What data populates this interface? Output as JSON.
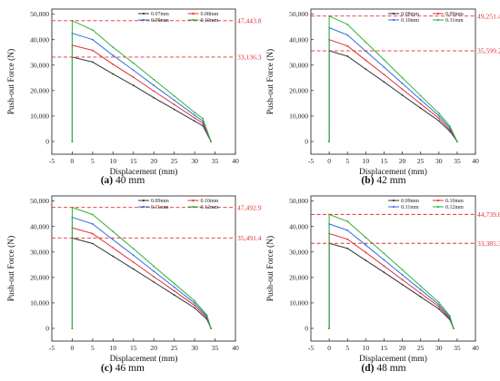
{
  "figure": {
    "charts": [
      {
        "caption_letter": "(a)",
        "caption_text": " 40 mm"
      },
      {
        "caption_letter": "(b)",
        "caption_text": " 42 mm"
      },
      {
        "caption_letter": "(c)",
        "caption_text": " 46 mm"
      },
      {
        "caption_letter": "(d)",
        "caption_text": " 48 mm"
      }
    ]
  },
  "colors": {
    "series": [
      "#333333",
      "#e03030",
      "#2f6fe0",
      "#2db33a"
    ],
    "reference_line": "#e03030",
    "reference_label": "#e03030",
    "axis": "#333333"
  },
  "chart_data": [
    {
      "type": "line",
      "xlabel": "Displacement (mm)",
      "ylabel": "Push-out Force (N)",
      "xlim": [
        -5,
        40
      ],
      "ylim": [
        -5000,
        52000
      ],
      "xticks": [
        "-5",
        "0",
        "5",
        "10",
        "15",
        "20",
        "25",
        "30",
        "35",
        "40"
      ],
      "yticks": [
        "0",
        "10,000",
        "20,000",
        "30,000",
        "40,000",
        "50,000"
      ],
      "legend": "top-right",
      "series": [
        {
          "name": "0.07mm",
          "points": [
            [
              0,
              0
            ],
            [
              0,
              33136
            ],
            [
              5,
              31200
            ],
            [
              10,
              26500
            ],
            [
              15,
              22000
            ],
            [
              20,
              17200
            ],
            [
              25,
              12600
            ],
            [
              30,
              8000
            ],
            [
              32,
              6200
            ],
            [
              34,
              0
            ]
          ]
        },
        {
          "name": "0.08mm",
          "points": [
            [
              0,
              0
            ],
            [
              0,
              37800
            ],
            [
              5,
              35800
            ],
            [
              10,
              30300
            ],
            [
              15,
              25200
            ],
            [
              20,
              19800
            ],
            [
              25,
              14500
            ],
            [
              30,
              9200
            ],
            [
              32,
              7200
            ],
            [
              34,
              0
            ]
          ]
        },
        {
          "name": "0.09mm",
          "points": [
            [
              0,
              0
            ],
            [
              0,
              42500
            ],
            [
              5,
              40000
            ],
            [
              10,
              33800
            ],
            [
              15,
              28000
            ],
            [
              20,
              22000
            ],
            [
              25,
              16200
            ],
            [
              30,
              10300
            ],
            [
              32,
              8000
            ],
            [
              34,
              0
            ]
          ]
        },
        {
          "name": "0.10mm",
          "points": [
            [
              0,
              0
            ],
            [
              0,
              47444
            ],
            [
              5,
              43800
            ],
            [
              10,
              37000
            ],
            [
              15,
              30800
            ],
            [
              20,
              24300
            ],
            [
              25,
              17900
            ],
            [
              30,
              11400
            ],
            [
              32,
              9000
            ],
            [
              34,
              0
            ]
          ]
        }
      ],
      "reference_lines": [
        {
          "y": 47443.8,
          "label": "47,443.8"
        },
        {
          "y": 33136.3,
          "label": "33,136.3"
        }
      ]
    },
    {
      "type": "line",
      "xlabel": "Displacement (mm)",
      "ylabel": "Push-out Force (N)",
      "xlim": [
        -5,
        40
      ],
      "ylim": [
        -5000,
        52000
      ],
      "xticks": [
        "-5",
        "0",
        "5",
        "10",
        "15",
        "20",
        "25",
        "30",
        "35",
        "40"
      ],
      "yticks": [
        "0",
        "10,000",
        "20,000",
        "30,000",
        "40,000",
        "50,000"
      ],
      "legend": "top-right",
      "series": [
        {
          "name": "0.08mm",
          "points": [
            [
              0,
              0
            ],
            [
              0,
              35599
            ],
            [
              5,
              33500
            ],
            [
              10,
              28400
            ],
            [
              15,
              23400
            ],
            [
              20,
              18200
            ],
            [
              25,
              13100
            ],
            [
              30,
              8100
            ],
            [
              33,
              4000
            ],
            [
              35,
              0
            ]
          ]
        },
        {
          "name": "0.09mm",
          "points": [
            [
              0,
              0
            ],
            [
              0,
              40000
            ],
            [
              5,
              37500
            ],
            [
              10,
              31900
            ],
            [
              15,
              26300
            ],
            [
              20,
              20500
            ],
            [
              25,
              14800
            ],
            [
              30,
              9100
            ],
            [
              33,
              4600
            ],
            [
              35,
              0
            ]
          ]
        },
        {
          "name": "0.10mm",
          "points": [
            [
              0,
              0
            ],
            [
              0,
              44700
            ],
            [
              5,
              41800
            ],
            [
              10,
              35500
            ],
            [
              15,
              29200
            ],
            [
              20,
              22800
            ],
            [
              25,
              16400
            ],
            [
              30,
              10100
            ],
            [
              33,
              5300
            ],
            [
              35,
              0
            ]
          ]
        },
        {
          "name": "0.11mm",
          "points": [
            [
              0,
              0
            ],
            [
              0,
              49251
            ],
            [
              5,
              46000
            ],
            [
              10,
              39000
            ],
            [
              15,
              32100
            ],
            [
              20,
              25000
            ],
            [
              25,
              18000
            ],
            [
              30,
              11100
            ],
            [
              33,
              6000
            ],
            [
              35,
              0
            ]
          ]
        }
      ],
      "reference_lines": [
        {
          "y": 49251.4,
          "label": "49,251.4"
        },
        {
          "y": 35599.2,
          "label": "35,599.2"
        }
      ]
    },
    {
      "type": "line",
      "xlabel": "Displacement (mm)",
      "ylabel": "Push-out Force (N)",
      "xlim": [
        -5,
        40
      ],
      "ylim": [
        -5000,
        52000
      ],
      "xticks": [
        "-5",
        "0",
        "5",
        "10",
        "15",
        "20",
        "25",
        "30",
        "35",
        "40"
      ],
      "yticks": [
        "0",
        "10,000",
        "20,000",
        "30,000",
        "40,000",
        "50,000"
      ],
      "legend": "top-right",
      "series": [
        {
          "name": "0.09mm",
          "points": [
            [
              0,
              0
            ],
            [
              0,
              35491
            ],
            [
              5,
              33300
            ],
            [
              10,
              28300
            ],
            [
              15,
              23300
            ],
            [
              20,
              18200
            ],
            [
              25,
              13100
            ],
            [
              30,
              8000
            ],
            [
              33,
              3600
            ],
            [
              34,
              0
            ]
          ]
        },
        {
          "name": "0.10mm",
          "points": [
            [
              0,
              0
            ],
            [
              0,
              39500
            ],
            [
              5,
              37200
            ],
            [
              10,
              31600
            ],
            [
              15,
              26000
            ],
            [
              20,
              20300
            ],
            [
              25,
              14700
            ],
            [
              30,
              9000
            ],
            [
              33,
              4200
            ],
            [
              34,
              0
            ]
          ]
        },
        {
          "name": "0.11mm",
          "points": [
            [
              0,
              0
            ],
            [
              0,
              43600
            ],
            [
              5,
              41000
            ],
            [
              10,
              34800
            ],
            [
              15,
              28700
            ],
            [
              20,
              22400
            ],
            [
              25,
              16200
            ],
            [
              30,
              9900
            ],
            [
              33,
              4700
            ],
            [
              34,
              0
            ]
          ]
        },
        {
          "name": "0.12mm",
          "points": [
            [
              0,
              0
            ],
            [
              0,
              47493
            ],
            [
              5,
              44700
            ],
            [
              10,
              38000
            ],
            [
              15,
              31300
            ],
            [
              20,
              24400
            ],
            [
              25,
              17600
            ],
            [
              30,
              10800
            ],
            [
              33,
              5200
            ],
            [
              34,
              0
            ]
          ]
        }
      ],
      "reference_lines": [
        {
          "y": 47492.9,
          "label": "47,492.9"
        },
        {
          "y": 35491.4,
          "label": "35,491.4"
        }
      ]
    },
    {
      "type": "line",
      "xlabel": "Displacement (mm)",
      "ylabel": "Push-out Force (N)",
      "xlim": [
        -5,
        40
      ],
      "ylim": [
        -5000,
        52000
      ],
      "xticks": [
        "-5",
        "0",
        "5",
        "10",
        "15",
        "20",
        "25",
        "30",
        "35",
        "40"
      ],
      "yticks": [
        "0",
        "10,000",
        "20,000",
        "30,000",
        "40,000",
        "50,000"
      ],
      "legend": "top-right",
      "series": [
        {
          "name": "0.09mm",
          "points": [
            [
              0,
              0
            ],
            [
              0,
              33385
            ],
            [
              5,
              31400
            ],
            [
              10,
              26700
            ],
            [
              15,
              22000
            ],
            [
              20,
              17200
            ],
            [
              25,
              12400
            ],
            [
              30,
              7600
            ],
            [
              33,
              3400
            ],
            [
              34,
              0
            ]
          ]
        },
        {
          "name": "0.10mm",
          "points": [
            [
              0,
              0
            ],
            [
              0,
              37200
            ],
            [
              5,
              35000
            ],
            [
              10,
              29800
            ],
            [
              15,
              24500
            ],
            [
              20,
              19100
            ],
            [
              25,
              13800
            ],
            [
              30,
              8500
            ],
            [
              33,
              3900
            ],
            [
              34,
              0
            ]
          ]
        },
        {
          "name": "0.11mm",
          "points": [
            [
              0,
              0
            ],
            [
              0,
              41000
            ],
            [
              5,
              38500
            ],
            [
              10,
              32700
            ],
            [
              15,
              26900
            ],
            [
              20,
              21000
            ],
            [
              25,
              15200
            ],
            [
              30,
              9300
            ],
            [
              33,
              4400
            ],
            [
              34,
              0
            ]
          ]
        },
        {
          "name": "0.12mm",
          "points": [
            [
              0,
              0
            ],
            [
              0,
              44740
            ],
            [
              5,
              42000
            ],
            [
              10,
              35700
            ],
            [
              15,
              29400
            ],
            [
              20,
              23000
            ],
            [
              25,
              16600
            ],
            [
              30,
              10200
            ],
            [
              33,
              4900
            ],
            [
              34,
              0
            ]
          ]
        }
      ],
      "reference_lines": [
        {
          "y": 44739.8,
          "label": "44,739.8"
        },
        {
          "y": 33385.3,
          "label": "33,385.3"
        }
      ]
    }
  ]
}
